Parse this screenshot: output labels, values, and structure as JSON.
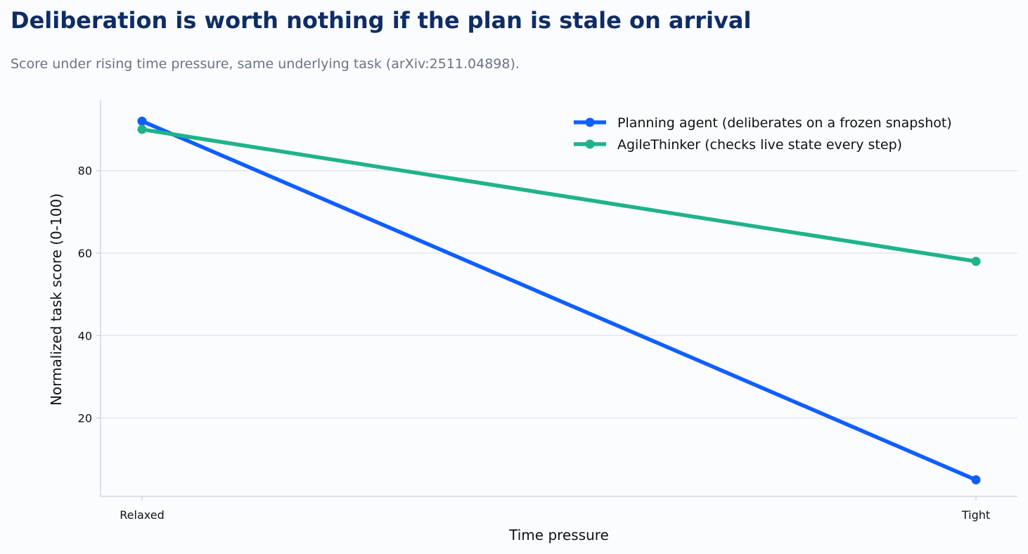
{
  "chart_data": {
    "type": "line",
    "title": "Deliberation is worth nothing if the plan is stale on arrival",
    "subtitle": "Score under rising time pressure, same underlying task (arXiv:2511.04898).",
    "xlabel": "Time pressure",
    "ylabel": "Normalized task score (0-100)",
    "categories": [
      "Relaxed",
      "Tight"
    ],
    "ylim": [
      1,
      97
    ],
    "yticks": [
      20,
      40,
      60,
      80
    ],
    "grid": "horizontal",
    "legend_position": "top-right",
    "series": [
      {
        "name": "Planning agent (deliberates on a frozen snapshot)",
        "values": [
          92,
          5
        ],
        "color": "#0f5fff"
      },
      {
        "name": "AgileThinker (checks live state every step)",
        "values": [
          90,
          58
        ],
        "color": "#1fb38a"
      }
    ]
  }
}
